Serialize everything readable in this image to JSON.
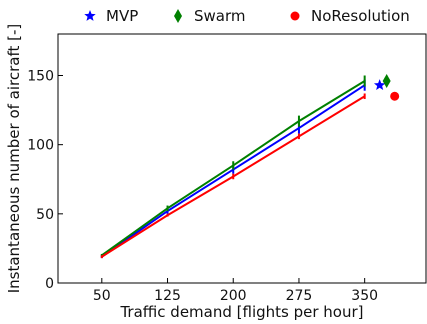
{
  "chart_data": {
    "type": "line",
    "xlabel": "Traffic demand [flights per hour]",
    "ylabel": "Instantaneous number of aircraft [-]",
    "x_ticks": [
      50,
      125,
      200,
      275,
      350
    ],
    "y_ticks": [
      0,
      50,
      100,
      150
    ],
    "xlim": [
      0,
      420
    ],
    "ylim": [
      0,
      180
    ],
    "legend_position": "top",
    "series": [
      {
        "name": "MVP",
        "color": "#0000ff",
        "marker": "star",
        "x": [
          50,
          125,
          200,
          275,
          350
        ],
        "y": [
          19,
          52,
          82,
          112,
          143
        ],
        "err": [
          1,
          2,
          3,
          4,
          4
        ]
      },
      {
        "name": "Swarm",
        "color": "#008000",
        "marker": "diamond",
        "x": [
          50,
          125,
          200,
          275,
          350
        ],
        "y": [
          20,
          54,
          85,
          117,
          146
        ],
        "err": [
          1,
          2,
          3,
          4,
          4
        ]
      },
      {
        "name": "NoResolution",
        "color": "#ff0000",
        "marker": "circle",
        "x": [
          50,
          125,
          200,
          275,
          350
        ],
        "y": [
          19,
          49,
          77,
          106,
          135
        ],
        "err": [
          1,
          1,
          2,
          2,
          2
        ]
      }
    ]
  }
}
